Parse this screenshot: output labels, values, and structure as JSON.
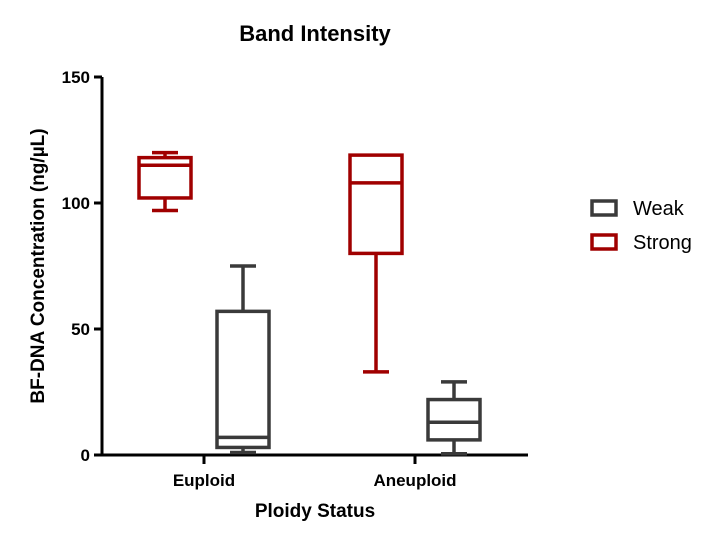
{
  "chart_data": {
    "type": "box",
    "title": "Band Intensity",
    "xlabel": "Ploidy Status",
    "ylabel": "BF-DNA Concentration (ng/µL)",
    "ylim": [
      0,
      150
    ],
    "yticks": [
      "0",
      "50",
      "100",
      "150"
    ],
    "categories": [
      "Euploid",
      "Aneuploid"
    ],
    "grid": false,
    "legend_position": "right",
    "series": [
      {
        "name": "Weak",
        "color": "#3a3a3a",
        "boxes": [
          {
            "category": "Euploid",
            "min": 1,
            "q1": 3,
            "median": 7,
            "q3": 57,
            "max": 75
          },
          {
            "category": "Aneuploid",
            "min": 0.5,
            "q1": 6,
            "median": 13,
            "q3": 22,
            "max": 29
          }
        ]
      },
      {
        "name": "Strong",
        "color": "#a00000",
        "boxes": [
          {
            "category": "Euploid",
            "min": 97,
            "q1": 102,
            "median": 115,
            "q3": 118,
            "max": 120
          },
          {
            "category": "Aneuploid",
            "min": 33,
            "q1": 80,
            "median": 108,
            "q3": 119,
            "max": 119
          }
        ]
      }
    ]
  }
}
